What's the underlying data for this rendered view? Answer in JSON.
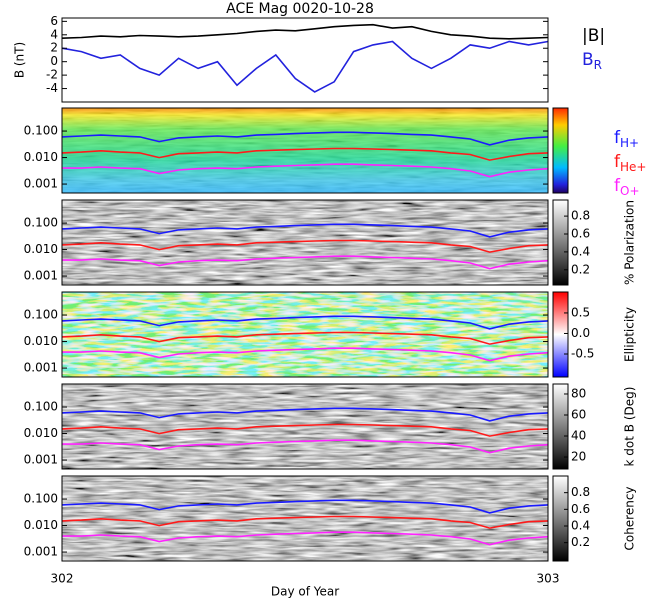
{
  "chart_data": [
    {
      "type": "line",
      "title": "ACE Mag 0020-10-28",
      "ylabel": "B (nT)",
      "ylim": [
        -6,
        6.5
      ],
      "yticks": [
        -4,
        -2,
        0,
        2,
        4,
        6
      ],
      "xlim": [
        302,
        303
      ],
      "legend": "right-outside",
      "x": [
        302,
        302.04,
        302.08,
        302.12,
        302.16,
        302.2,
        302.24,
        302.28,
        302.32,
        302.36,
        302.4,
        302.44,
        302.48,
        302.52,
        302.56,
        302.6,
        302.64,
        302.68,
        302.72,
        302.76,
        302.8,
        302.84,
        302.88,
        302.92,
        302.96,
        303
      ],
      "series": [
        {
          "name": "|B|",
          "color": "#000000",
          "values": [
            3.5,
            3.6,
            3.8,
            3.7,
            3.9,
            3.8,
            3.7,
            3.8,
            4.0,
            4.2,
            4.5,
            4.7,
            4.6,
            4.9,
            5.2,
            5.4,
            5.5,
            5.0,
            5.2,
            4.5,
            4.0,
            3.8,
            3.5,
            3.4,
            3.5,
            3.6
          ]
        },
        {
          "name": "BR",
          "color": "#2222dd",
          "values": [
            2.0,
            1.5,
            0.5,
            1.0,
            -1.0,
            -2.0,
            0.5,
            -1.0,
            0.0,
            -3.5,
            -1.0,
            1.0,
            -2.5,
            -4.5,
            -3.0,
            1.5,
            2.5,
            3.0,
            0.5,
            -1.0,
            0.5,
            2.5,
            2.0,
            3.0,
            2.5,
            3.0
          ]
        }
      ]
    },
    {
      "type": "line",
      "log": true,
      "colormap": "rainbow",
      "ylim": [
        0.00046,
        0.74
      ],
      "yticks": [
        {
          "value": 0.001,
          "label": "0.001"
        },
        {
          "value": 0.01,
          "label": "0.010"
        },
        {
          "value": 0.1,
          "label": "0.100"
        }
      ],
      "xlim": [
        302,
        303
      ],
      "legend": "right-outside",
      "x": [
        302,
        302.04,
        302.08,
        302.12,
        302.16,
        302.2,
        302.24,
        302.28,
        302.32,
        302.36,
        302.4,
        302.44,
        302.48,
        302.52,
        302.56,
        302.6,
        302.64,
        302.68,
        302.72,
        302.76,
        302.8,
        302.84,
        302.88,
        302.92,
        302.96,
        303
      ],
      "series": [
        {
          "name": "fH+",
          "color": "#1a1aff",
          "values": [
            0.06,
            0.065,
            0.07,
            0.065,
            0.06,
            0.04,
            0.055,
            0.06,
            0.065,
            0.06,
            0.07,
            0.075,
            0.08,
            0.085,
            0.09,
            0.09,
            0.085,
            0.08,
            0.075,
            0.07,
            0.06,
            0.05,
            0.03,
            0.045,
            0.055,
            0.06
          ]
        },
        {
          "name": "fHe+",
          "color": "#ff1a1a",
          "values": [
            0.015,
            0.016,
            0.018,
            0.016,
            0.015,
            0.01,
            0.014,
            0.015,
            0.016,
            0.015,
            0.018,
            0.019,
            0.02,
            0.021,
            0.022,
            0.022,
            0.021,
            0.02,
            0.019,
            0.018,
            0.015,
            0.013,
            0.008,
            0.011,
            0.014,
            0.015
          ]
        },
        {
          "name": "fO+",
          "color": "#ff22ff",
          "values": [
            0.004,
            0.004,
            0.0044,
            0.004,
            0.0038,
            0.0025,
            0.0034,
            0.0038,
            0.004,
            0.0038,
            0.0044,
            0.0047,
            0.005,
            0.0053,
            0.0056,
            0.0056,
            0.0053,
            0.005,
            0.0047,
            0.0044,
            0.0038,
            0.0031,
            0.0019,
            0.0028,
            0.0034,
            0.0038
          ]
        }
      ]
    },
    {
      "type": "line",
      "log": true,
      "colormap": "gray",
      "colorbar": {
        "label": "% Polarization",
        "lim": [
          0.03,
          0.98
        ],
        "ticks": [
          0.2,
          0.4,
          0.6,
          0.8
        ]
      },
      "ylim": [
        0.00046,
        0.74
      ],
      "yticks": [
        {
          "value": 0.001,
          "label": "0.001"
        },
        {
          "value": 0.01,
          "label": "0.010"
        },
        {
          "value": 0.1,
          "label": "0.100"
        }
      ],
      "xlim": [
        302,
        303
      ],
      "x": [
        302,
        302.04,
        302.08,
        302.12,
        302.16,
        302.2,
        302.24,
        302.28,
        302.32,
        302.36,
        302.4,
        302.44,
        302.48,
        302.52,
        302.56,
        302.6,
        302.64,
        302.68,
        302.72,
        302.76,
        302.8,
        302.84,
        302.88,
        302.92,
        302.96,
        303
      ],
      "series": [
        {
          "color": "#1a1aff",
          "values": [
            0.06,
            0.065,
            0.07,
            0.065,
            0.06,
            0.04,
            0.055,
            0.06,
            0.065,
            0.06,
            0.07,
            0.075,
            0.08,
            0.085,
            0.09,
            0.09,
            0.085,
            0.08,
            0.075,
            0.07,
            0.06,
            0.05,
            0.03,
            0.045,
            0.055,
            0.06
          ]
        },
        {
          "color": "#ff1a1a",
          "values": [
            0.015,
            0.016,
            0.018,
            0.016,
            0.015,
            0.01,
            0.014,
            0.015,
            0.016,
            0.015,
            0.018,
            0.019,
            0.02,
            0.021,
            0.022,
            0.022,
            0.021,
            0.02,
            0.019,
            0.018,
            0.015,
            0.013,
            0.008,
            0.011,
            0.014,
            0.015
          ]
        },
        {
          "color": "#ff22ff",
          "values": [
            0.004,
            0.004,
            0.0044,
            0.004,
            0.0038,
            0.0025,
            0.0034,
            0.0038,
            0.004,
            0.0038,
            0.0044,
            0.0047,
            0.005,
            0.0053,
            0.0056,
            0.0056,
            0.0053,
            0.005,
            0.0047,
            0.0044,
            0.0038,
            0.0031,
            0.0019,
            0.0028,
            0.0034,
            0.0038
          ]
        }
      ]
    },
    {
      "type": "line",
      "log": true,
      "colormap": "bwr",
      "colorbar": {
        "label": "Ellipticity",
        "lim": [
          -1.06,
          1.01
        ],
        "ticks": [
          -0.5,
          {
            "value": 0,
            "label": "0.0"
          },
          0.5
        ]
      },
      "ylim": [
        0.00046,
        0.74
      ],
      "yticks": [
        {
          "value": 0.001,
          "label": "0.001"
        },
        {
          "value": 0.01,
          "label": "0.010"
        },
        {
          "value": 0.1,
          "label": "0.100"
        }
      ],
      "xlim": [
        302,
        303
      ],
      "x": [
        302,
        302.04,
        302.08,
        302.12,
        302.16,
        302.2,
        302.24,
        302.28,
        302.32,
        302.36,
        302.4,
        302.44,
        302.48,
        302.52,
        302.56,
        302.6,
        302.64,
        302.68,
        302.72,
        302.76,
        302.8,
        302.84,
        302.88,
        302.92,
        302.96,
        303
      ],
      "series": [
        {
          "color": "#1a1aff",
          "values": [
            0.06,
            0.065,
            0.07,
            0.065,
            0.06,
            0.04,
            0.055,
            0.06,
            0.065,
            0.06,
            0.07,
            0.075,
            0.08,
            0.085,
            0.09,
            0.09,
            0.085,
            0.08,
            0.075,
            0.07,
            0.06,
            0.05,
            0.03,
            0.045,
            0.055,
            0.06
          ]
        },
        {
          "color": "#ff1a1a",
          "values": [
            0.015,
            0.016,
            0.018,
            0.016,
            0.015,
            0.01,
            0.014,
            0.015,
            0.016,
            0.015,
            0.018,
            0.019,
            0.02,
            0.021,
            0.022,
            0.022,
            0.021,
            0.02,
            0.019,
            0.018,
            0.015,
            0.013,
            0.008,
            0.011,
            0.014,
            0.015
          ]
        },
        {
          "color": "#ff22ff",
          "values": [
            0.004,
            0.004,
            0.0044,
            0.004,
            0.0038,
            0.0025,
            0.0034,
            0.0038,
            0.004,
            0.0038,
            0.0044,
            0.0047,
            0.005,
            0.0053,
            0.0056,
            0.0056,
            0.0053,
            0.005,
            0.0047,
            0.0044,
            0.0038,
            0.0031,
            0.0019,
            0.0028,
            0.0034,
            0.0038
          ]
        }
      ]
    },
    {
      "type": "line",
      "log": true,
      "colormap": "gray",
      "colorbar": {
        "label": "k dot B (Deg)",
        "lim": [
          8.6,
          89.5
        ],
        "ticks": [
          20,
          40,
          60,
          80
        ]
      },
      "ylim": [
        0.00046,
        0.74
      ],
      "yticks": [
        {
          "value": 0.001,
          "label": "0.001"
        },
        {
          "value": 0.01,
          "label": "0.010"
        },
        {
          "value": 0.1,
          "label": "0.100"
        }
      ],
      "xlim": [
        302,
        303
      ],
      "x": [
        302,
        302.04,
        302.08,
        302.12,
        302.16,
        302.2,
        302.24,
        302.28,
        302.32,
        302.36,
        302.4,
        302.44,
        302.48,
        302.52,
        302.56,
        302.6,
        302.64,
        302.68,
        302.72,
        302.76,
        302.8,
        302.84,
        302.88,
        302.92,
        302.96,
        303
      ],
      "series": [
        {
          "color": "#1a1aff",
          "values": [
            0.06,
            0.065,
            0.07,
            0.065,
            0.06,
            0.04,
            0.055,
            0.06,
            0.065,
            0.06,
            0.07,
            0.075,
            0.08,
            0.085,
            0.09,
            0.09,
            0.085,
            0.08,
            0.075,
            0.07,
            0.06,
            0.05,
            0.03,
            0.045,
            0.055,
            0.06
          ]
        },
        {
          "color": "#ff1a1a",
          "values": [
            0.015,
            0.016,
            0.018,
            0.016,
            0.015,
            0.01,
            0.014,
            0.015,
            0.016,
            0.015,
            0.018,
            0.019,
            0.02,
            0.021,
            0.022,
            0.022,
            0.021,
            0.02,
            0.019,
            0.018,
            0.015,
            0.013,
            0.008,
            0.011,
            0.014,
            0.015
          ]
        },
        {
          "color": "#ff22ff",
          "values": [
            0.004,
            0.004,
            0.0044,
            0.004,
            0.0038,
            0.0025,
            0.0034,
            0.0038,
            0.004,
            0.0038,
            0.0044,
            0.0047,
            0.005,
            0.0053,
            0.0056,
            0.0056,
            0.0053,
            0.005,
            0.0047,
            0.0044,
            0.0038,
            0.0031,
            0.0019,
            0.0028,
            0.0034,
            0.0038
          ]
        }
      ]
    },
    {
      "type": "line",
      "log": true,
      "colormap": "gray",
      "colorbar": {
        "label": "Coherency",
        "lim": [
          -0.02,
          1.0
        ],
        "ticks": [
          0.2,
          0.4,
          0.6,
          0.8
        ]
      },
      "ylim": [
        0.00046,
        0.74
      ],
      "yticks": [
        {
          "value": 0.001,
          "label": "0.001"
        },
        {
          "value": 0.01,
          "label": "0.010"
        },
        {
          "value": 0.1,
          "label": "0.100"
        }
      ],
      "xlim": [
        302,
        303
      ],
      "xticks": [
        302,
        303
      ],
      "xlabel": "Day of Year",
      "x": [
        302,
        302.04,
        302.08,
        302.12,
        302.16,
        302.2,
        302.24,
        302.28,
        302.32,
        302.36,
        302.4,
        302.44,
        302.48,
        302.52,
        302.56,
        302.6,
        302.64,
        302.68,
        302.72,
        302.76,
        302.8,
        302.84,
        302.88,
        302.92,
        302.96,
        303
      ],
      "series": [
        {
          "color": "#1a1aff",
          "values": [
            0.06,
            0.065,
            0.07,
            0.065,
            0.06,
            0.04,
            0.055,
            0.06,
            0.065,
            0.06,
            0.07,
            0.075,
            0.08,
            0.085,
            0.09,
            0.09,
            0.085,
            0.08,
            0.075,
            0.07,
            0.06,
            0.05,
            0.03,
            0.045,
            0.055,
            0.06
          ]
        },
        {
          "color": "#ff1a1a",
          "values": [
            0.015,
            0.016,
            0.018,
            0.016,
            0.015,
            0.01,
            0.014,
            0.015,
            0.016,
            0.015,
            0.018,
            0.019,
            0.02,
            0.021,
            0.022,
            0.022,
            0.021,
            0.02,
            0.019,
            0.018,
            0.015,
            0.013,
            0.008,
            0.011,
            0.014,
            0.015
          ]
        },
        {
          "color": "#ff22ff",
          "values": [
            0.004,
            0.004,
            0.0044,
            0.004,
            0.0038,
            0.0025,
            0.0034,
            0.0038,
            0.004,
            0.0038,
            0.0044,
            0.0047,
            0.005,
            0.0053,
            0.0056,
            0.0056,
            0.0053,
            0.005,
            0.0047,
            0.0044,
            0.0038,
            0.0031,
            0.0019,
            0.0028,
            0.0034,
            0.0038
          ]
        }
      ]
    }
  ]
}
